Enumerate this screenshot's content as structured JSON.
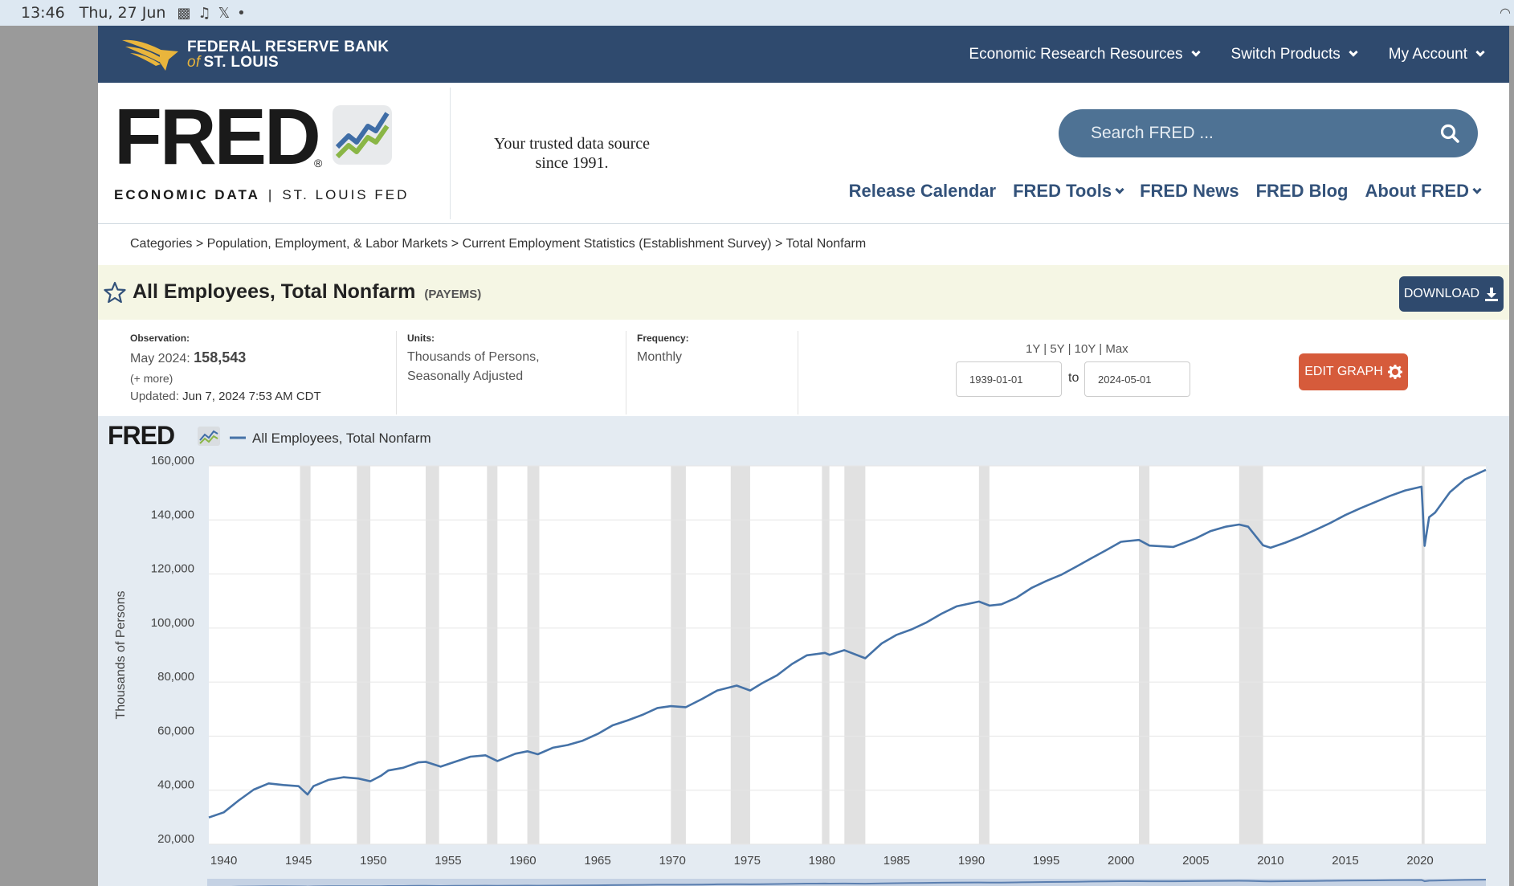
{
  "status_bar": {
    "time": "13:46",
    "date": "Thu, 27 Jun"
  },
  "bank": {
    "line1": "FEDERAL RESERVE BANK",
    "of": "of",
    "line2": "ST. LOUIS"
  },
  "top_nav": [
    "Economic Research Resources",
    "Switch Products",
    "My Account"
  ],
  "brand": {
    "word": "FRED",
    "reg": "®",
    "sub_left": "ECONOMIC DATA",
    "sub_sep": "|",
    "sub_right": "ST. LOUIS FED"
  },
  "tagline": "Your trusted data source since 1991.",
  "search": {
    "placeholder": "Search FRED ..."
  },
  "main_nav": [
    "Release Calendar",
    "FRED Tools",
    "FRED News",
    "FRED Blog",
    "About FRED"
  ],
  "breadcrumb": [
    "Categories",
    "Population, Employment, & Labor Markets",
    "Current Employment Statistics (Establishment Survey)",
    "Total Nonfarm"
  ],
  "breadcrumb_sep": ">",
  "title": "All Employees, Total Nonfarm",
  "series_id": "(PAYEMS)",
  "download_label": "DOWNLOAD",
  "observation": {
    "label": "Observation:",
    "period": "May 2024:",
    "value": "158,543",
    "more": "(+ more)",
    "updated_label": "Updated:",
    "updated": "Jun 7, 2024 7:53 AM CDT"
  },
  "units": {
    "label": "Units:",
    "line1": "Thousands of Persons,",
    "line2": "Seasonally Adjusted"
  },
  "frequency": {
    "label": "Frequency:",
    "value": "Monthly"
  },
  "ranges": [
    "1Y",
    "5Y",
    "10Y",
    "Max"
  ],
  "range_sep": "|",
  "date_from": "1939-01-01",
  "date_to": "2024-05-01",
  "to_label": "to",
  "edit_graph_label": "EDIT GRAPH",
  "colors": {
    "navy": "#2f4a6e",
    "line": "#4572a7",
    "recession": "#e1e1e1",
    "edit": "#d65b3b",
    "gold": "#e9b53c"
  },
  "chart_data": {
    "type": "line",
    "title": "",
    "legend": "All Employees, Total Nonfarm",
    "ylabel": "Thousands of Persons",
    "ylim": [
      20000,
      160000
    ],
    "xlim": [
      1939.0,
      2024.4
    ],
    "y_ticks": [
      "20,000",
      "40,000",
      "60,000",
      "80,000",
      "100,000",
      "120,000",
      "140,000",
      "160,000"
    ],
    "x_ticks": [
      "1940",
      "1945",
      "1950",
      "1955",
      "1960",
      "1965",
      "1970",
      "1975",
      "1980",
      "1985",
      "1990",
      "1995",
      "2000",
      "2005",
      "2010",
      "2015",
      "2020"
    ],
    "x_tick_values": [
      1940,
      1945,
      1950,
      1955,
      1960,
      1965,
      1970,
      1975,
      1980,
      1985,
      1990,
      1995,
      2000,
      2005,
      2010,
      2015,
      2020
    ],
    "recessions": [
      [
        1945.1,
        1945.8
      ],
      [
        1948.9,
        1949.8
      ],
      [
        1953.5,
        1954.4
      ],
      [
        1957.6,
        1958.3
      ],
      [
        1960.3,
        1961.1
      ],
      [
        1969.9,
        1970.9
      ],
      [
        1973.9,
        1975.2
      ],
      [
        1980.0,
        1980.5
      ],
      [
        1981.5,
        1982.9
      ],
      [
        1990.5,
        1991.2
      ],
      [
        2001.2,
        2001.9
      ],
      [
        2007.9,
        2009.5
      ],
      [
        2020.1,
        2020.3
      ]
    ],
    "series": [
      {
        "name": "All Employees, Total Nonfarm",
        "x": [
          1939.0,
          1940.0,
          1941.0,
          1942.0,
          1943.0,
          1944.0,
          1945.0,
          1945.6,
          1946.0,
          1947.0,
          1948.0,
          1949.0,
          1949.8,
          1950.5,
          1951.0,
          1952.0,
          1953.0,
          1953.5,
          1954.5,
          1955.5,
          1956.5,
          1957.5,
          1958.3,
          1959.5,
          1960.3,
          1961.0,
          1962.0,
          1963.0,
          1964.0,
          1965.0,
          1966.0,
          1967.0,
          1968.0,
          1969.0,
          1969.9,
          1970.9,
          1972.0,
          1973.0,
          1974.3,
          1975.2,
          1976.0,
          1977.0,
          1978.0,
          1979.0,
          1980.2,
          1980.5,
          1981.5,
          1982.9,
          1984.0,
          1985.0,
          1986.0,
          1987.0,
          1988.0,
          1989.0,
          1990.5,
          1991.2,
          1992.0,
          1993.0,
          1994.0,
          1995.0,
          1996.0,
          1997.0,
          1998.0,
          1999.0,
          2000.0,
          2001.2,
          2001.9,
          2003.5,
          2005.0,
          2006.0,
          2007.0,
          2007.9,
          2008.5,
          2009.5,
          2010.0,
          2011.0,
          2012.0,
          2013.0,
          2014.0,
          2015.0,
          2016.0,
          2017.0,
          2018.0,
          2019.0,
          2020.1,
          2020.3,
          2020.6,
          2021.0,
          2022.0,
          2023.0,
          2024.4
        ],
        "values": [
          29900,
          31800,
          36200,
          40200,
          42500,
          41900,
          41500,
          38400,
          41500,
          43800,
          44800,
          44300,
          43300,
          45300,
          47300,
          48300,
          50300,
          50500,
          48700,
          50600,
          52400,
          52900,
          50800,
          53500,
          54400,
          53300,
          55700,
          56700,
          58300,
          60800,
          64000,
          65800,
          67900,
          70400,
          71100,
          70700,
          73800,
          76900,
          78700,
          76900,
          79600,
          82500,
          86700,
          89900,
          90800,
          90100,
          91800,
          88800,
          94300,
          97500,
          99500,
          102100,
          105300,
          108000,
          109800,
          108300,
          108800,
          111200,
          114800,
          117400,
          119700,
          122700,
          125800,
          128800,
          131900,
          132600,
          130500,
          130000,
          133200,
          135900,
          137500,
          138300,
          137500,
          130600,
          129700,
          131600,
          133800,
          136300,
          138900,
          141800,
          144300,
          146600,
          148900,
          150900,
          152300,
          130400,
          141000,
          142700,
          150300,
          155000,
          158543
        ]
      }
    ]
  }
}
